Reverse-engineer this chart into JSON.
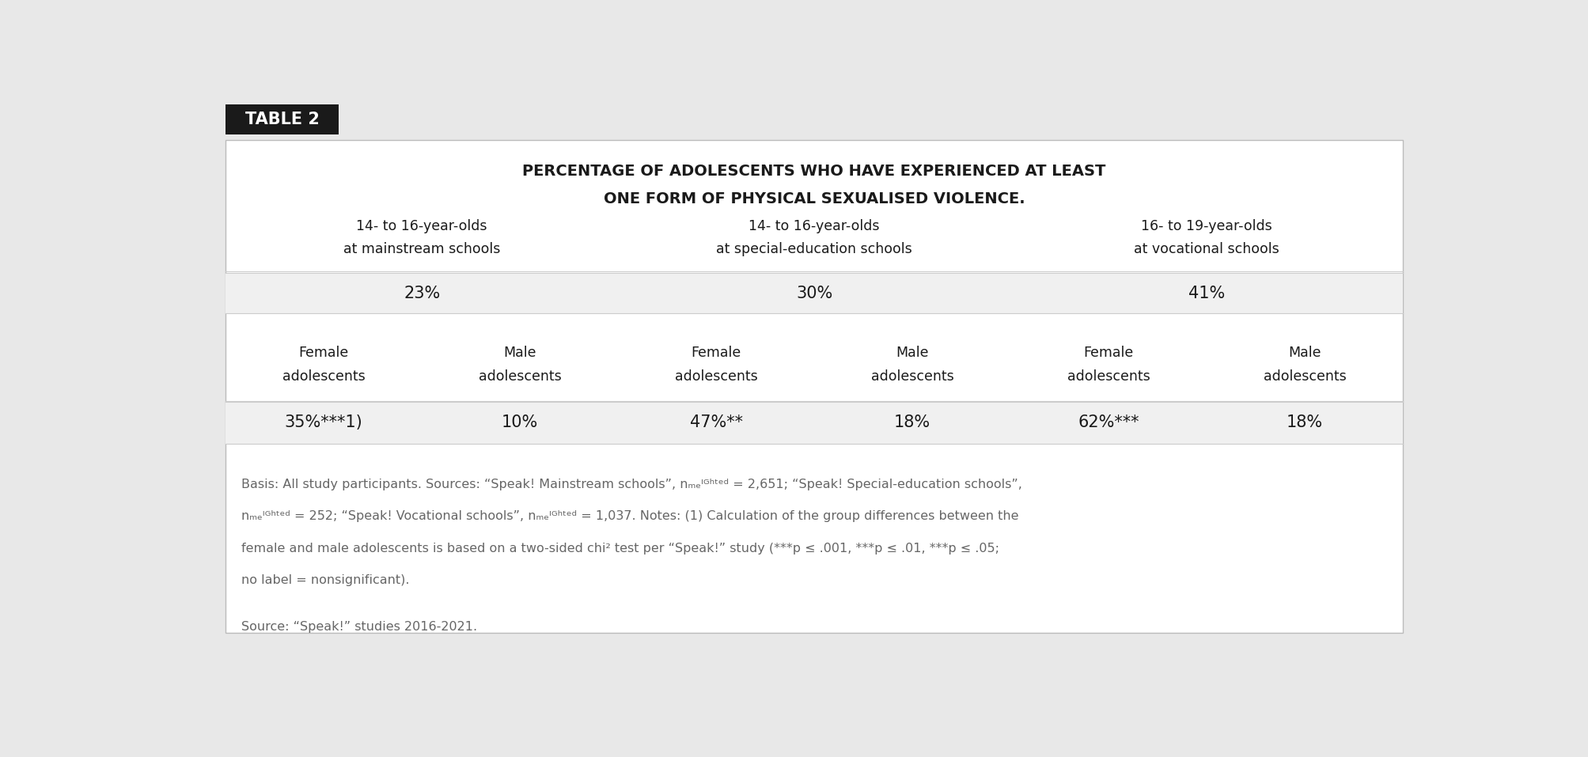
{
  "bg_color": "#e8e8e8",
  "table_bg_color": "#ffffff",
  "header_bg_color": "#1a1a1a",
  "header_text_color": "#ffffff",
  "header_label": "TABLE 2",
  "title_line1": "PERCENTAGE OF ADOLESCENTS WHO HAVE EXPERIENCED AT LEAST",
  "title_line2": "ONE FORM OF PHYSICAL SEXUALISED VIOLENCE.",
  "col_group_headers": [
    "14- to 16-year-olds\nat mainstream schools",
    "14- to 16-year-olds\nat special-education schools",
    "16- to 19-year-olds\nat vocational schools"
  ],
  "overall_pcts": [
    "23%",
    "30%",
    "41%"
  ],
  "sub_col_headers": [
    "Female\nadolescents",
    "Male\nadolescents",
    "Female\nadolescents",
    "Male\nadolescents",
    "Female\nadolescents",
    "Male\nadolescents"
  ],
  "data_values_raw": [
    "35%***1)",
    "10%",
    "47%**",
    "18%",
    "62%***",
    "18%"
  ],
  "footnote_lines": [
    "Basis: All study participants. Sources: “Speak! Mainstream schools”, n_weighted = 2,651; “Speak! Special-education schools”,",
    "n_weighted = 252; “Speak! Vocational schools”, n_weighted = 1,037. Notes: (1) Calculation of the group differences between the",
    "female and male adolescents is based on a two-sided chi² test per “Speak!” study (***p ≤ .001, ***p ≤ .01, ***p ≤ .05;",
    "no label = nonsignificant)."
  ],
  "source_line": "Source: “Speak!” studies 2016-2021.",
  "shaded_row_color": "#f0f0f0",
  "line_color": "#cccccc",
  "text_dark": "#1a1a1a",
  "text_footnote": "#666666"
}
